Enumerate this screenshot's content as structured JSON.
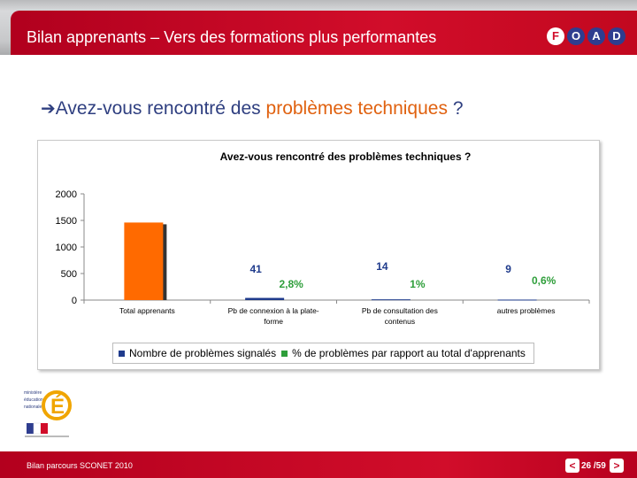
{
  "header": {
    "title": "Bilan apprenants – Vers des formations plus performantes",
    "logo_letters": [
      "F",
      "O",
      "A",
      "D"
    ]
  },
  "question": {
    "prefix": "Avez-vous rencontré des ",
    "highlight": "problèmes techniques",
    "suffix": " ?"
  },
  "chart_data": {
    "type": "bar",
    "title": "Avez-vous rencontré des problèmes techniques ?",
    "categories": [
      "Total apprenants",
      "Pb de connexion à la plate-forme",
      "Pb de consultation des contenus",
      "autres problèmes"
    ],
    "category_lines": [
      [
        "Total apprenants"
      ],
      [
        "Pb de connexion à la plate-",
        "forme"
      ],
      [
        "Pb de consultation des",
        "contenus"
      ],
      [
        "autres problèmes"
      ]
    ],
    "series": [
      {
        "name": "Nombre de problèmes signalés",
        "color": "#1f3b8c",
        "values": [
          null,
          41,
          14,
          9
        ],
        "labels": [
          "",
          "41",
          "14",
          "9"
        ]
      },
      {
        "name": "% de problèmes par rapport au total d'apprenants",
        "color": "#2e9e3a",
        "values": [
          null,
          2.8,
          1,
          0.6
        ],
        "labels": [
          "",
          "2,8%",
          "1%",
          "0,6%"
        ]
      }
    ],
    "total_bar": {
      "value": 1460,
      "color": "#ff6a00"
    },
    "yticks": [
      0,
      500,
      1000,
      1500,
      2000
    ],
    "ylim": [
      0,
      2000
    ],
    "legend_position": "bottom",
    "label_color": "#1f3b8c",
    "pct_label_color": "#2e9e3a"
  },
  "footer": {
    "text": "Bilan parcours SCONET 2010",
    "page": "26 /59",
    "prev": "<",
    "next": ">",
    "ministry_lines": [
      "ministère",
      "éducation",
      "nationale"
    ]
  },
  "colors": {
    "brand_red": "#d10d2a",
    "title_blue": "#2f3f80",
    "highlight_orange": "#e0610f"
  }
}
